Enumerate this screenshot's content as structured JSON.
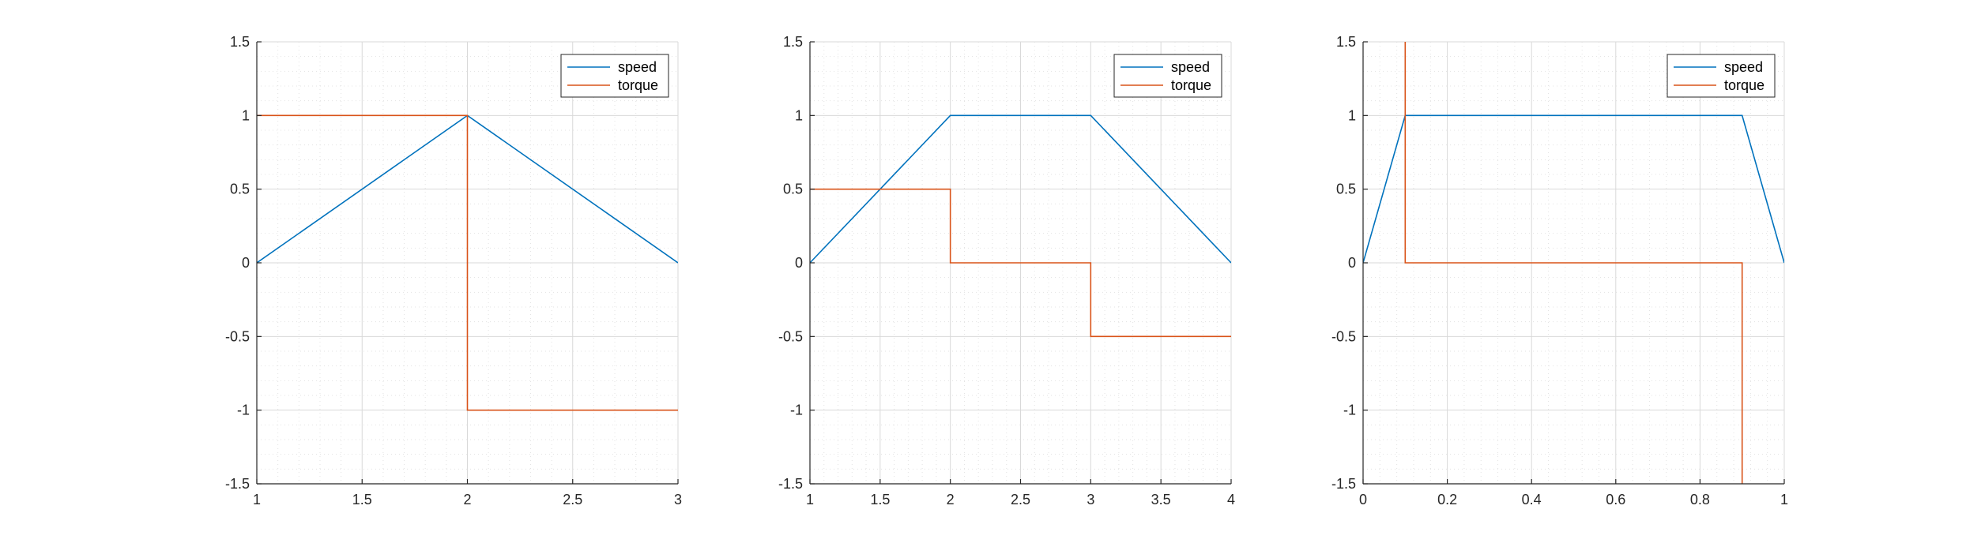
{
  "figure": {
    "background": "#ffffff",
    "axis_color": "#262626",
    "grid_color": "#d9d9d9"
  },
  "chart_data": [
    {
      "type": "line",
      "title": "",
      "xlabel": "",
      "ylabel": "",
      "xlim": [
        1,
        3
      ],
      "ylim": [
        -1.5,
        1.5
      ],
      "xticks": [
        1,
        1.5,
        2,
        2.5,
        3
      ],
      "xtick_labels": [
        "1",
        "1.5",
        "2",
        "2.5",
        "3"
      ],
      "yticks": [
        -1.5,
        -1,
        -0.5,
        0,
        0.5,
        1,
        1.5
      ],
      "ytick_labels": [
        "-1.5",
        "-1",
        "-0.5",
        "0",
        "0.5",
        "1",
        "1.5"
      ],
      "grid": "major and minor",
      "legend_position": "top-right",
      "series": [
        {
          "name": "speed",
          "color": "#0072BD",
          "x": [
            1,
            2,
            3
          ],
          "y": [
            0,
            1,
            0
          ]
        },
        {
          "name": "torque",
          "color": "#D95319",
          "x": [
            1,
            2,
            2,
            3
          ],
          "y": [
            1,
            1,
            -1,
            -1
          ]
        }
      ]
    },
    {
      "type": "line",
      "title": "",
      "xlabel": "",
      "ylabel": "",
      "xlim": [
        1,
        4
      ],
      "ylim": [
        -1.5,
        1.5
      ],
      "xticks": [
        1,
        1.5,
        2,
        2.5,
        3,
        3.5,
        4
      ],
      "xtick_labels": [
        "1",
        "1.5",
        "2",
        "2.5",
        "3",
        "3.5",
        "4"
      ],
      "yticks": [
        -1.5,
        -1,
        -0.5,
        0,
        0.5,
        1,
        1.5
      ],
      "ytick_labels": [
        "-1.5",
        "-1",
        "-0.5",
        "0",
        "0.5",
        "1",
        "1.5"
      ],
      "grid": "major and minor",
      "legend_position": "top-right",
      "series": [
        {
          "name": "speed",
          "color": "#0072BD",
          "x": [
            1,
            2,
            3,
            4
          ],
          "y": [
            0,
            1,
            1,
            0
          ]
        },
        {
          "name": "torque",
          "color": "#D95319",
          "x": [
            1,
            2,
            2,
            3,
            3,
            4
          ],
          "y": [
            0.5,
            0.5,
            0,
            0,
            -0.5,
            -0.5
          ]
        }
      ]
    },
    {
      "type": "line",
      "title": "",
      "xlabel": "",
      "ylabel": "",
      "xlim": [
        0,
        1
      ],
      "ylim": [
        -1.5,
        1.5
      ],
      "xticks": [
        0,
        0.2,
        0.4,
        0.6,
        0.8,
        1
      ],
      "xtick_labels": [
        "0",
        "0.2",
        "0.4",
        "0.6",
        "0.8",
        "1"
      ],
      "yticks": [
        -1.5,
        -1,
        -0.5,
        0,
        0.5,
        1,
        1.5
      ],
      "ytick_labels": [
        "-1.5",
        "-1",
        "-0.5",
        "0",
        "0.5",
        "1",
        "1.5"
      ],
      "grid": "major and minor",
      "legend_position": "top-right",
      "series": [
        {
          "name": "speed",
          "color": "#0072BD",
          "x": [
            0,
            0.1,
            0.9,
            1
          ],
          "y": [
            0,
            1,
            1,
            0
          ]
        },
        {
          "name": "torque",
          "color": "#D95319",
          "x": [
            0.1,
            0.1,
            0.9,
            0.9
          ],
          "y": [
            1.5,
            0,
            0,
            -1.5
          ]
        }
      ]
    }
  ]
}
